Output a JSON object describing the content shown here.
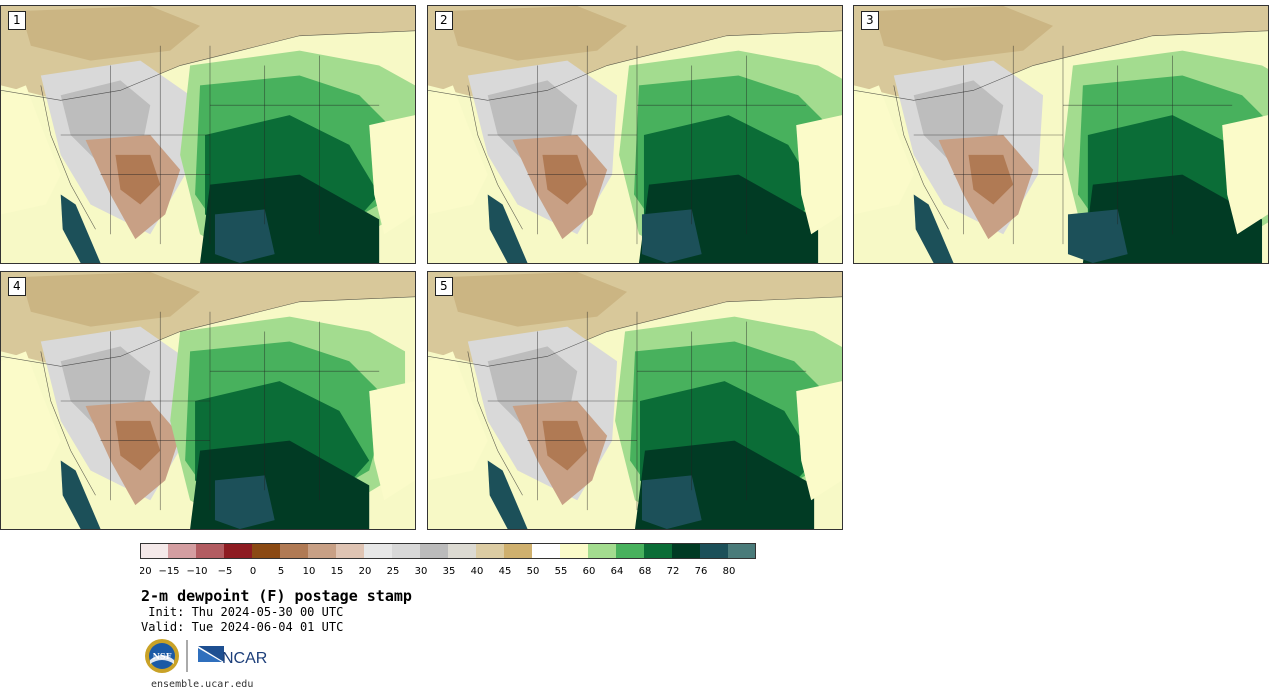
{
  "panels": [
    {
      "number": "1",
      "variant": 0
    },
    {
      "number": "2",
      "variant": 1
    },
    {
      "number": "3",
      "variant": 2
    },
    {
      "number": "4",
      "variant": 3
    },
    {
      "number": "5",
      "variant": 4
    }
  ],
  "colorbar": {
    "tick_labels": [
      "−20",
      "−15",
      "−10",
      "−5",
      "0",
      "5",
      "10",
      "15",
      "20",
      "25",
      "30",
      "35",
      "40",
      "45",
      "50",
      "55",
      "60",
      "64",
      "68",
      "72",
      "76",
      "80"
    ],
    "colors": [
      "#f4e9e9",
      "#d49ea1",
      "#b25c61",
      "#8e1c22",
      "#8b4a14",
      "#b07a54",
      "#c8a085",
      "#dfc4b3",
      "#e7e7e7",
      "#d8d8d8",
      "#bbbbbb",
      "#dcdad2",
      "#dccca3",
      "#cfb06e",
      "#ffffff",
      "#fbfbc9",
      "#a3dc8f",
      "#48b15d",
      "#0b6d37",
      "#013b24",
      "#1c5059",
      "#4a7b7a"
    ]
  },
  "title": "2-m dewpoint (F) postage stamp",
  "init": " Init: Thu 2024-05-30 00 UTC",
  "valid": "Valid: Tue 2024-06-04 01 UTC",
  "logos": {
    "nsf": "NSF",
    "ncar": "NCAR"
  },
  "website": "ensemble.ucar.edu"
}
